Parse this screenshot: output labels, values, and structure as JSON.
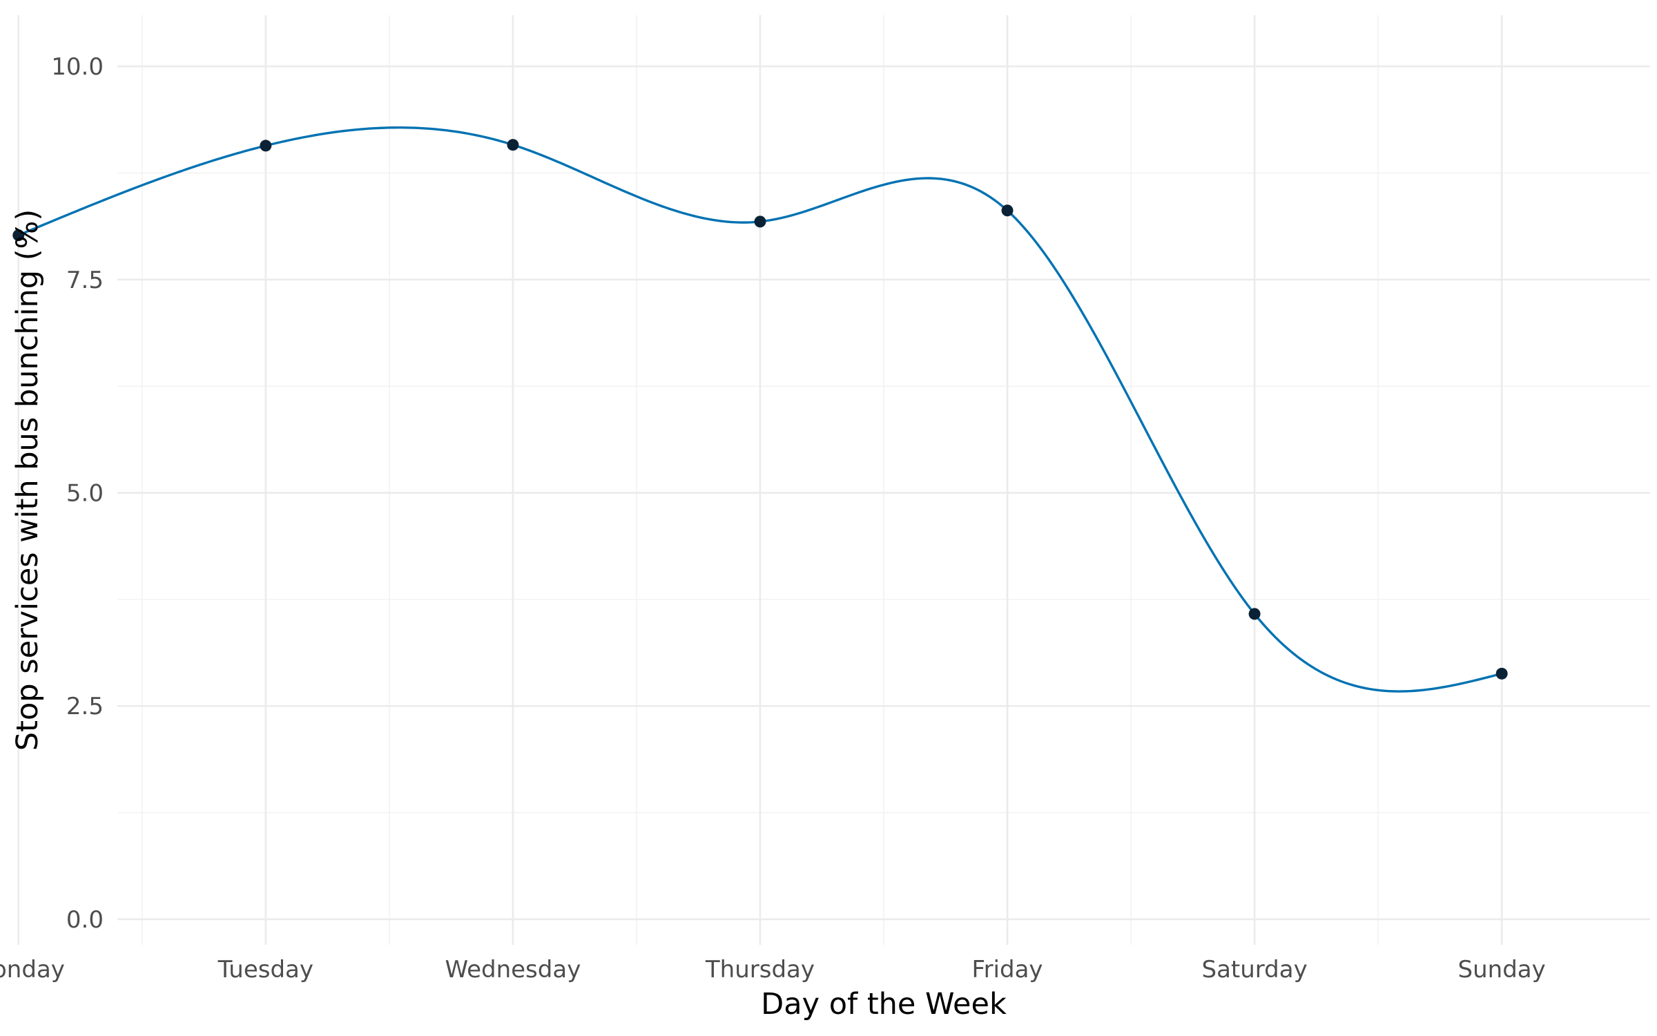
{
  "chart_data": {
    "type": "line",
    "title": "",
    "xlabel": "Day of the Week",
    "ylabel": "Stop services with bus bunching (%)",
    "categories": [
      "Monday",
      "Tuesday",
      "Wednesday",
      "Thursday",
      "Friday",
      "Saturday",
      "Sunday"
    ],
    "series": [
      {
        "values": [
          8.02,
          9.07,
          9.08,
          8.18,
          8.31,
          3.58,
          2.88
        ]
      }
    ],
    "smoothed": true,
    "ylim": [
      -0.3,
      10.6
    ],
    "yticks": [
      0.0,
      2.5,
      5.0,
      7.5,
      10.0
    ],
    "ytick_labels": [
      "0.0",
      "2.5",
      "5.0",
      "7.5",
      "10.0"
    ],
    "grid": true,
    "legend": "none",
    "colors": {
      "line": "#0072b2",
      "point": "#0b2236"
    }
  }
}
